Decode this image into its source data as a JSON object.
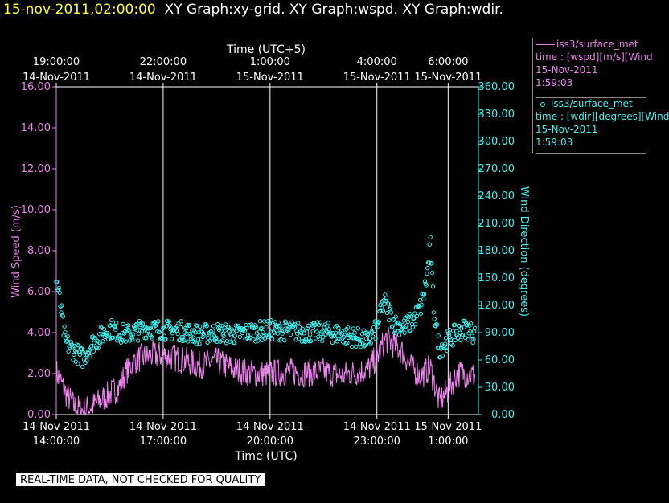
{
  "header": {
    "timestamp": "15-nov-2011,02:00:00",
    "graphs": "XY Graph:xy-grid.  XY Graph:wspd.  XY Graph:wdir."
  },
  "legend": [
    {
      "name": "iss3/surface_met",
      "line1": "time : [wspd][m/s][Wind",
      "line2": "15-Nov-2011",
      "line3": "1:59:03",
      "color": "#ee82ee",
      "marker": "line"
    },
    {
      "name": "iss3/surface_met",
      "line1": "time : [wdir][degrees][Wind",
      "line2": "15-Nov-2011",
      "line3": "1:59:03",
      "color": "#40f0f0",
      "marker": "circle"
    }
  ],
  "disclaimer": "REAL-TIME DATA, NOT CHECKED FOR QUALITY",
  "chart_data": {
    "type": "line",
    "xlabel": "Time (UTC)",
    "x2label": "Time (UTC+5)",
    "ylabel": "Wind Speed (m/s)",
    "y2label": "Wind Direction (degrees)",
    "xlim_hours_utc": [
      14.0,
      1.85
    ],
    "bottom_ticks": [
      {
        "t": 14.0,
        "line1": "14-Nov-2011",
        "line2": "14:00:00"
      },
      {
        "t": 17.0,
        "line1": "14-Nov-2011",
        "line2": "17:00:00"
      },
      {
        "t": 20.0,
        "line1": "14-Nov-2011",
        "line2": "20:00:00"
      },
      {
        "t": 23.0,
        "line1": "14-Nov-2011",
        "line2": "23:00:00"
      },
      {
        "t": 25.0,
        "line1": "15-Nov-2011",
        "line2": "1:00:00"
      }
    ],
    "top_ticks": [
      {
        "t": 14.0,
        "line1": "19:00:00",
        "line2": "14-Nov-2011"
      },
      {
        "t": 17.0,
        "line1": "22:00:00",
        "line2": "14-Nov-2011"
      },
      {
        "t": 20.0,
        "line1": "1:00:00",
        "line2": "15-Nov-2011"
      },
      {
        "t": 23.0,
        "line1": "4:00:00",
        "line2": "15-Nov-2011"
      },
      {
        "t": 25.0,
        "line1": "6:00:00",
        "line2": "15-Nov-2011"
      }
    ],
    "left_ticks": [
      "0.00",
      "2.00",
      "4.00",
      "6.00",
      "8.00",
      "10.00",
      "12.00",
      "14.00",
      "16.00"
    ],
    "right_ticks": [
      "0.00",
      "30.00",
      "60.00",
      "90.00",
      "120.00",
      "150.00",
      "180.00",
      "210.00",
      "240.00",
      "270.00",
      "300.00",
      "330.00",
      "360.00"
    ],
    "ylim_left": [
      0,
      16
    ],
    "ylim_right": [
      0,
      360
    ],
    "grid": "vertical",
    "series": [
      {
        "name": "iss3/surface_met time : [wspd][m/s][Wind",
        "axis": "left",
        "color": "#ee82ee",
        "x": [
          14.0,
          14.25,
          14.5,
          14.75,
          15.0,
          15.25,
          15.5,
          15.75,
          16.0,
          16.25,
          16.5,
          16.75,
          17.0,
          17.5,
          18.0,
          18.5,
          19.0,
          19.5,
          20.0,
          20.5,
          21.0,
          21.5,
          22.0,
          22.5,
          22.75,
          23.0,
          23.25,
          23.5,
          23.75,
          24.0,
          24.25,
          24.5,
          24.75,
          25.0,
          25.25,
          25.5,
          25.75
        ],
        "values": [
          2.1,
          1.1,
          0.4,
          0.2,
          0.4,
          0.7,
          1.0,
          1.3,
          2.2,
          2.7,
          2.8,
          2.9,
          2.9,
          2.7,
          2.4,
          2.6,
          2.2,
          2.0,
          2.0,
          2.1,
          2.0,
          2.1,
          1.9,
          2.1,
          2.2,
          2.8,
          3.7,
          3.4,
          3.0,
          2.2,
          1.9,
          2.3,
          0.6,
          1.2,
          2.0,
          2.0,
          1.9
        ]
      },
      {
        "name": "iss3/surface_met time : [wdir][degrees][Wind",
        "axis": "right",
        "color": "#40f0f0",
        "x": [
          14.0,
          14.1,
          14.25,
          14.5,
          14.75,
          15.0,
          15.25,
          15.5,
          15.75,
          16.0,
          16.5,
          17.0,
          17.5,
          18.0,
          18.5,
          19.0,
          19.5,
          20.0,
          20.5,
          21.0,
          21.5,
          22.0,
          22.5,
          22.75,
          23.0,
          23.2,
          23.5,
          23.75,
          24.0,
          24.25,
          24.4,
          24.5,
          24.6,
          24.75,
          25.0,
          25.25,
          25.5,
          25.75
        ],
        "values": [
          148,
          125,
          80,
          70,
          62,
          78,
          86,
          95,
          90,
          88,
          95,
          93,
          92,
          88,
          90,
          88,
          91,
          93,
          92,
          90,
          91,
          88,
          84,
          80,
          95,
          125,
          100,
          96,
          102,
          120,
          150,
          185,
          115,
          72,
          82,
          90,
          95,
          88
        ]
      }
    ]
  }
}
